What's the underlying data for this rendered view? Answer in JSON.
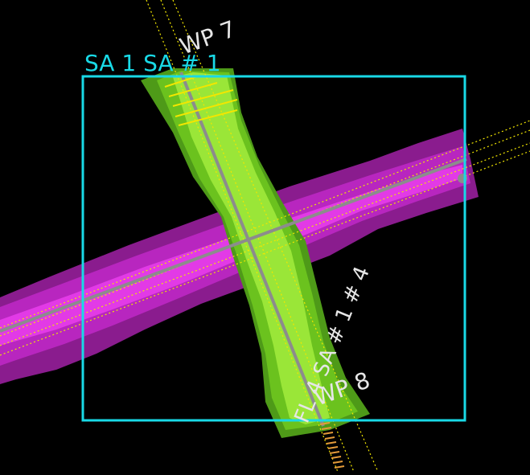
{
  "viewport": {
    "background": "#000000",
    "labels": {
      "sa_label": "SA 1 SA # 1",
      "wp7_label": "WP 7",
      "wp8_label": "WP 8",
      "fl_label": "FL 4 SA # 1 # 4"
    }
  },
  "colors": {
    "boundary": "#19D9E6",
    "magenta_dark": "#8A1C8E",
    "magenta_mid": "#B826BF",
    "magenta_bright": "#E23AE6",
    "green_dark": "#4E9A18",
    "green_mid": "#6BC21E",
    "green_light": "#9AE638",
    "centerline": "#8C8C8C",
    "dotted_line": "#F2E600",
    "ticks_orange": "#E39A3A"
  }
}
